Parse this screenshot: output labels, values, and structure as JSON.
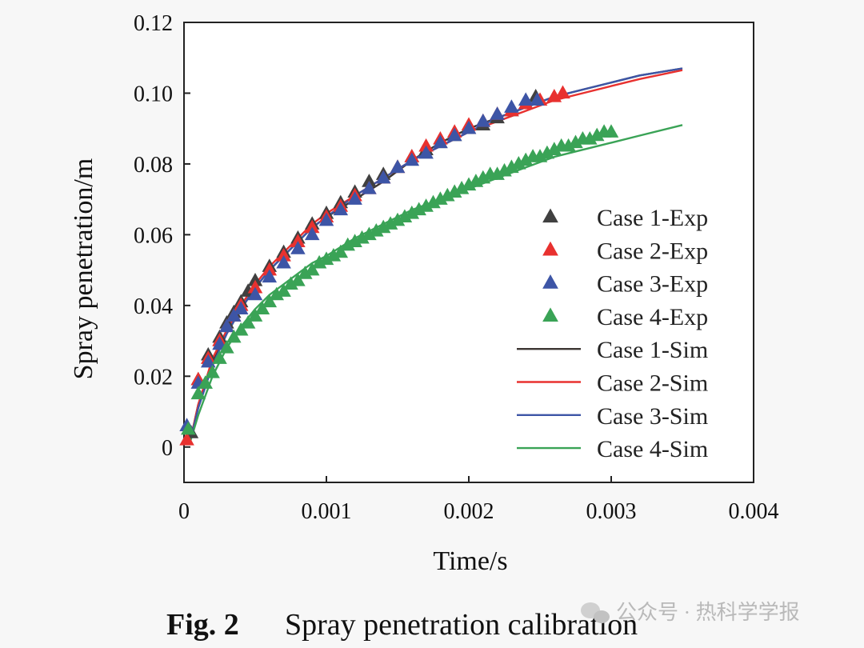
{
  "chart_data": {
    "type": "line",
    "xlabel": "Time/s",
    "ylabel": "Spray penetration/m",
    "xlim": [
      0,
      0.004
    ],
    "ylim": [
      -0.01,
      0.12
    ],
    "xticks": [
      "0",
      "0.001",
      "0.002",
      "0.003",
      "0.004"
    ],
    "xtick_values": [
      0,
      0.001,
      0.002,
      0.003,
      0.004
    ],
    "yticks": [
      "0",
      "0.02",
      "0.04",
      "0.06",
      "0.08",
      "0.10",
      "0.12"
    ],
    "ytick_values": [
      0,
      0.02,
      0.04,
      0.06,
      0.08,
      0.1,
      0.12
    ],
    "grid": false,
    "legend_position": "right",
    "series": [
      {
        "name": "Case 1-Exp",
        "kind": "scatter",
        "marker": "triangle",
        "color": "#404040",
        "x": [
          5e-05,
          0.0001,
          0.00017,
          0.00025,
          0.0003,
          0.00035,
          0.0004,
          0.00045,
          0.0005,
          0.0006,
          0.0007,
          0.0008,
          0.0009,
          0.001,
          0.0011,
          0.0012,
          0.0013,
          0.0014,
          0.0015,
          0.0016,
          0.0017,
          0.0018,
          0.0019,
          0.002,
          0.0021,
          0.0022,
          0.0023,
          0.0024,
          0.00247
        ],
        "y": [
          0.004,
          0.019,
          0.026,
          0.031,
          0.035,
          0.038,
          0.041,
          0.044,
          0.047,
          0.051,
          0.055,
          0.059,
          0.063,
          0.066,
          0.069,
          0.072,
          0.075,
          0.077,
          0.079,
          0.082,
          0.084,
          0.086,
          0.088,
          0.09,
          0.091,
          0.093,
          0.095,
          0.097,
          0.099
        ]
      },
      {
        "name": "Case 2-Exp",
        "kind": "scatter",
        "marker": "triangle",
        "color": "#e8312f",
        "x": [
          2e-05,
          0.0001,
          0.00017,
          0.00025,
          0.0003,
          0.00035,
          0.0004,
          0.0005,
          0.0006,
          0.0007,
          0.0008,
          0.0009,
          0.001,
          0.0011,
          0.0012,
          0.0013,
          0.0014,
          0.0015,
          0.0016,
          0.0017,
          0.0018,
          0.0019,
          0.002,
          0.0021,
          0.0022,
          0.0023,
          0.0024,
          0.0025,
          0.0026,
          0.00266
        ],
        "y": [
          0.002,
          0.019,
          0.025,
          0.03,
          0.034,
          0.037,
          0.04,
          0.045,
          0.05,
          0.054,
          0.058,
          0.062,
          0.065,
          0.068,
          0.071,
          0.073,
          0.076,
          0.079,
          0.082,
          0.085,
          0.087,
          0.089,
          0.091,
          0.092,
          0.094,
          0.095,
          0.097,
          0.098,
          0.099,
          0.1
        ]
      },
      {
        "name": "Case 3-Exp",
        "kind": "scatter",
        "marker": "triangle",
        "color": "#3d55a6",
        "x": [
          2e-05,
          0.0001,
          0.00017,
          0.00025,
          0.0003,
          0.00035,
          0.0004,
          0.0005,
          0.0006,
          0.0007,
          0.0008,
          0.0009,
          0.001,
          0.0011,
          0.0012,
          0.0013,
          0.0014,
          0.0015,
          0.0016,
          0.0017,
          0.0018,
          0.0019,
          0.002,
          0.0021,
          0.0022,
          0.0023,
          0.0024,
          0.00248
        ],
        "y": [
          0.006,
          0.018,
          0.024,
          0.029,
          0.034,
          0.037,
          0.039,
          0.043,
          0.048,
          0.052,
          0.056,
          0.06,
          0.064,
          0.067,
          0.07,
          0.073,
          0.076,
          0.079,
          0.081,
          0.083,
          0.086,
          0.088,
          0.09,
          0.092,
          0.094,
          0.096,
          0.098,
          0.098
        ]
      },
      {
        "name": "Case 4-Exp",
        "kind": "scatter",
        "marker": "triangle",
        "color": "#3aa356",
        "x": [
          3e-05,
          0.0001,
          0.00015,
          0.0002,
          0.00025,
          0.0003,
          0.00035,
          0.0004,
          0.00045,
          0.0005,
          0.00055,
          0.0006,
          0.00065,
          0.0007,
          0.00075,
          0.0008,
          0.00085,
          0.0009,
          0.00095,
          0.001,
          0.00105,
          0.0011,
          0.00115,
          0.0012,
          0.00125,
          0.0013,
          0.00135,
          0.0014,
          0.00145,
          0.0015,
          0.00155,
          0.0016,
          0.00165,
          0.0017,
          0.00175,
          0.0018,
          0.00185,
          0.0019,
          0.00195,
          0.002,
          0.00205,
          0.0021,
          0.00215,
          0.0022,
          0.00225,
          0.0023,
          0.00235,
          0.0024,
          0.00245,
          0.0025,
          0.00255,
          0.0026,
          0.00265,
          0.0027,
          0.00275,
          0.0028,
          0.00285,
          0.0029,
          0.00295,
          0.003
        ],
        "y": [
          0.005,
          0.015,
          0.018,
          0.021,
          0.025,
          0.028,
          0.031,
          0.033,
          0.035,
          0.037,
          0.039,
          0.041,
          0.043,
          0.044,
          0.046,
          0.047,
          0.049,
          0.05,
          0.052,
          0.053,
          0.054,
          0.055,
          0.057,
          0.058,
          0.059,
          0.06,
          0.061,
          0.062,
          0.063,
          0.064,
          0.065,
          0.066,
          0.067,
          0.068,
          0.069,
          0.07,
          0.071,
          0.072,
          0.073,
          0.074,
          0.075,
          0.076,
          0.077,
          0.077,
          0.078,
          0.079,
          0.08,
          0.081,
          0.082,
          0.082,
          0.083,
          0.084,
          0.085,
          0.085,
          0.086,
          0.087,
          0.087,
          0.088,
          0.089,
          0.089
        ]
      },
      {
        "name": "Case 1-Sim",
        "kind": "line",
        "color": "#3c3532",
        "x": [
          4e-05,
          0.0001,
          0.0002,
          0.0003,
          0.0004,
          0.0005,
          0.0006,
          0.0007,
          0.0008,
          0.0009,
          0.001,
          0.0012,
          0.0014,
          0.0016,
          0.0018,
          0.002,
          0.0022,
          0.0024,
          0.0026,
          0.0028,
          0.003,
          0.0032,
          0.0035
        ],
        "y": [
          0.001,
          0.012,
          0.024,
          0.032,
          0.039,
          0.045,
          0.05,
          0.054,
          0.058,
          0.062,
          0.065,
          0.07,
          0.075,
          0.081,
          0.086,
          0.09,
          0.093,
          0.096,
          0.099,
          0.101,
          0.103,
          0.105,
          0.107
        ]
      },
      {
        "name": "Case 2-Sim",
        "kind": "line",
        "color": "#e8312f",
        "x": [
          4e-05,
          0.0001,
          0.0002,
          0.0003,
          0.0004,
          0.0005,
          0.0006,
          0.0007,
          0.0008,
          0.0009,
          0.001,
          0.0012,
          0.0014,
          0.0016,
          0.0018,
          0.002,
          0.0022,
          0.0024,
          0.0026,
          0.0028,
          0.003,
          0.0032,
          0.0035
        ],
        "y": [
          0.001,
          0.012,
          0.025,
          0.033,
          0.04,
          0.046,
          0.051,
          0.055,
          0.059,
          0.063,
          0.066,
          0.071,
          0.076,
          0.081,
          0.085,
          0.089,
          0.092,
          0.095,
          0.098,
          0.1,
          0.102,
          0.104,
          0.1065
        ]
      },
      {
        "name": "Case 3-Sim",
        "kind": "line",
        "color": "#3d55a6",
        "x": [
          4e-05,
          0.0001,
          0.0002,
          0.0003,
          0.0004,
          0.0005,
          0.0006,
          0.0007,
          0.0008,
          0.0009,
          0.001,
          0.0012,
          0.0014,
          0.0016,
          0.0018,
          0.002,
          0.0022,
          0.0024,
          0.0026,
          0.0028,
          0.003,
          0.0032,
          0.0035
        ],
        "y": [
          0.001,
          0.011,
          0.023,
          0.032,
          0.039,
          0.045,
          0.05,
          0.054,
          0.058,
          0.062,
          0.065,
          0.071,
          0.076,
          0.081,
          0.085,
          0.089,
          0.093,
          0.096,
          0.099,
          0.101,
          0.103,
          0.105,
          0.107
        ]
      },
      {
        "name": "Case 4-Sim",
        "kind": "line",
        "color": "#3aa356",
        "x": [
          4e-05,
          0.0001,
          0.0002,
          0.0003,
          0.0004,
          0.0005,
          0.0006,
          0.0007,
          0.0008,
          0.0009,
          0.001,
          0.0012,
          0.0014,
          0.0016,
          0.0018,
          0.002,
          0.0022,
          0.0024,
          0.0026,
          0.0028,
          0.003,
          0.0032,
          0.0035
        ],
        "y": [
          0.001,
          0.009,
          0.02,
          0.028,
          0.034,
          0.039,
          0.043,
          0.046,
          0.049,
          0.052,
          0.054,
          0.059,
          0.063,
          0.067,
          0.07,
          0.073,
          0.076,
          0.079,
          0.082,
          0.084,
          0.086,
          0.088,
          0.091
        ]
      }
    ]
  },
  "caption": {
    "fig_label": "Fig. 2",
    "title": "Spray penetration calibration"
  },
  "watermark": {
    "text": "公众号 · 热科学学报",
    "icon": "wechat-icon"
  }
}
